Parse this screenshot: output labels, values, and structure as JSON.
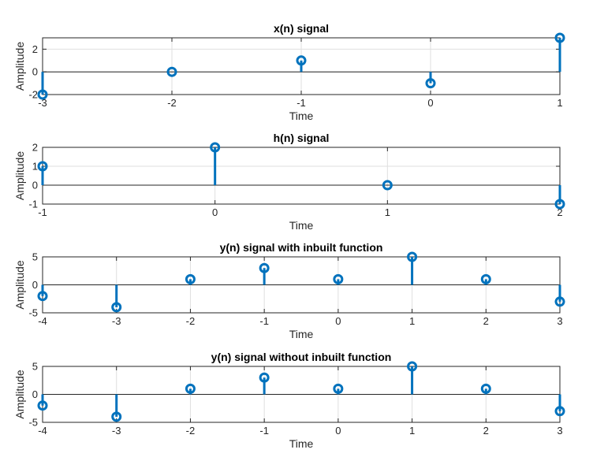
{
  "chart_data": [
    {
      "type": "stem",
      "title": "x(n) signal",
      "xlabel": "Time",
      "ylabel": "Amplitude",
      "xlim": [
        -3,
        1
      ],
      "ylim": [
        -2,
        3
      ],
      "xticks": [
        -3,
        -2,
        -1,
        0,
        1
      ],
      "yticks": [
        -2,
        0,
        2
      ],
      "grid": true,
      "color": "#0072BD",
      "x": [
        -3,
        -2,
        -1,
        0,
        1
      ],
      "y": [
        -2,
        0,
        1,
        -1,
        3
      ]
    },
    {
      "type": "stem",
      "title": "h(n) signal",
      "xlabel": "Time",
      "ylabel": "Amplitude",
      "xlim": [
        -1,
        2
      ],
      "ylim": [
        -1,
        2
      ],
      "xticks": [
        -1,
        0,
        1,
        2
      ],
      "yticks": [
        -1,
        0,
        1,
        2
      ],
      "grid": true,
      "color": "#0072BD",
      "x": [
        -1,
        0,
        1,
        2
      ],
      "y": [
        1,
        2,
        0,
        -1
      ]
    },
    {
      "type": "stem",
      "title": "y(n) signal with inbuilt function",
      "xlabel": "Time",
      "ylabel": "Amplitude",
      "xlim": [
        -4,
        3
      ],
      "ylim": [
        -5,
        5
      ],
      "xticks": [
        -4,
        -3,
        -2,
        -1,
        0,
        1,
        2,
        3
      ],
      "yticks": [
        -5,
        0,
        5
      ],
      "grid": true,
      "color": "#0072BD",
      "x": [
        -4,
        -3,
        -2,
        -1,
        0,
        1,
        2,
        3
      ],
      "y": [
        -2,
        -4,
        1,
        3,
        1,
        5,
        1,
        -3
      ]
    },
    {
      "type": "stem",
      "title": "y(n) signal without inbuilt function",
      "xlabel": "Time",
      "ylabel": "Amplitude",
      "xlim": [
        -4,
        3
      ],
      "ylim": [
        -5,
        5
      ],
      "xticks": [
        -4,
        -3,
        -2,
        -1,
        0,
        1,
        2,
        3
      ],
      "yticks": [
        -5,
        0,
        5
      ],
      "grid": true,
      "color": "#0072BD",
      "x": [
        -4,
        -3,
        -2,
        -1,
        0,
        1,
        2,
        3
      ],
      "y": [
        -2,
        -4,
        1,
        3,
        1,
        5,
        1,
        -3
      ]
    }
  ]
}
